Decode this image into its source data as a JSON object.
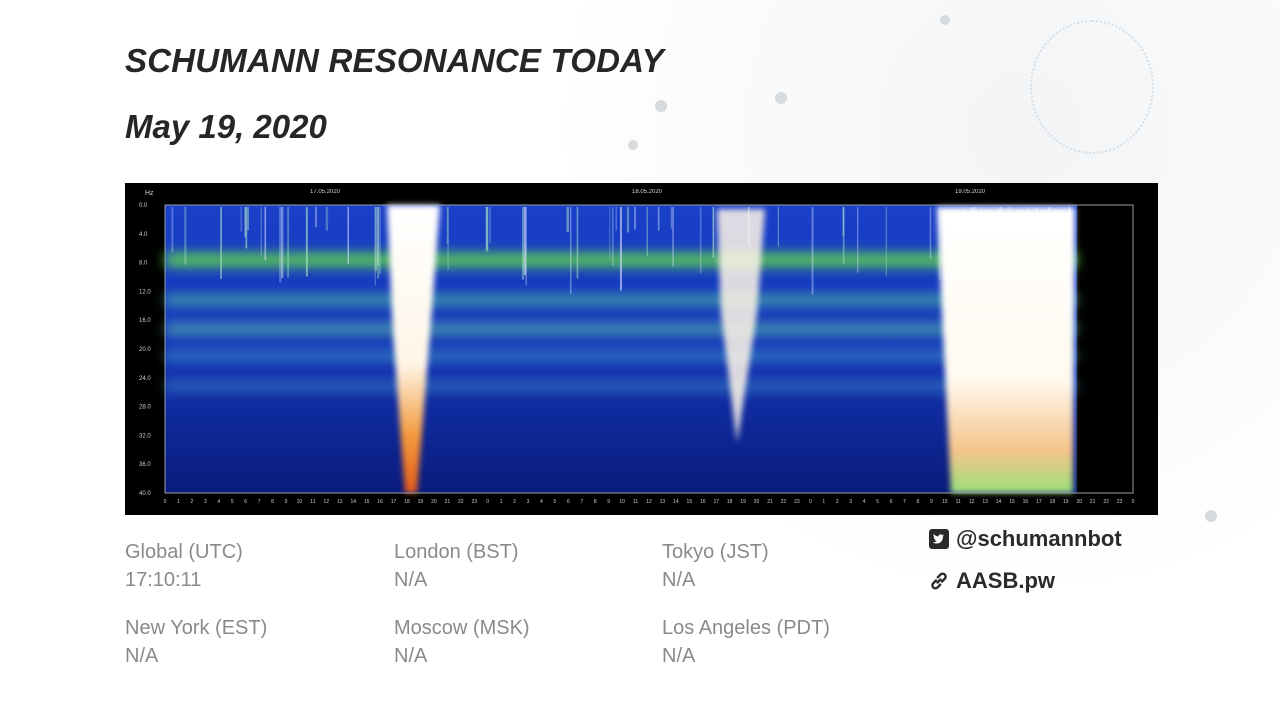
{
  "header": {
    "title": "SCHUMANN RESONANCE TODAY",
    "date": "May 19, 2020"
  },
  "spectrogram": {
    "y_unit": "Hz",
    "y_ticks": [
      "0.0",
      "4.0",
      "8.0",
      "12.0",
      "16.0",
      "20.0",
      "24.0",
      "28.0",
      "32.0",
      "36.0",
      "40.0"
    ],
    "day_labels": [
      "17.05.2020",
      "18.05.2020",
      "19.05.2020"
    ],
    "colors": {
      "background": "#1436b8",
      "deep": "#0a1f8f",
      "band": "#5fd94c",
      "hot": "#ffffff",
      "warm": "#f07a28"
    }
  },
  "timezones": [
    {
      "label": "Global (UTC)",
      "value": "17:10:11"
    },
    {
      "label": "London (BST)",
      "value": "N/A"
    },
    {
      "label": "Tokyo (JST)",
      "value": "N/A"
    },
    {
      "label": "New York (EST)",
      "value": "N/A"
    },
    {
      "label": "Moscow (MSK)",
      "value": "N/A"
    },
    {
      "label": "Los Angeles (PDT)",
      "value": "N/A"
    }
  ],
  "social": {
    "twitter": {
      "icon": "twitter-icon",
      "handle": "@schumannbot"
    },
    "website": {
      "icon": "link-icon",
      "url": "AASB.pw"
    }
  }
}
